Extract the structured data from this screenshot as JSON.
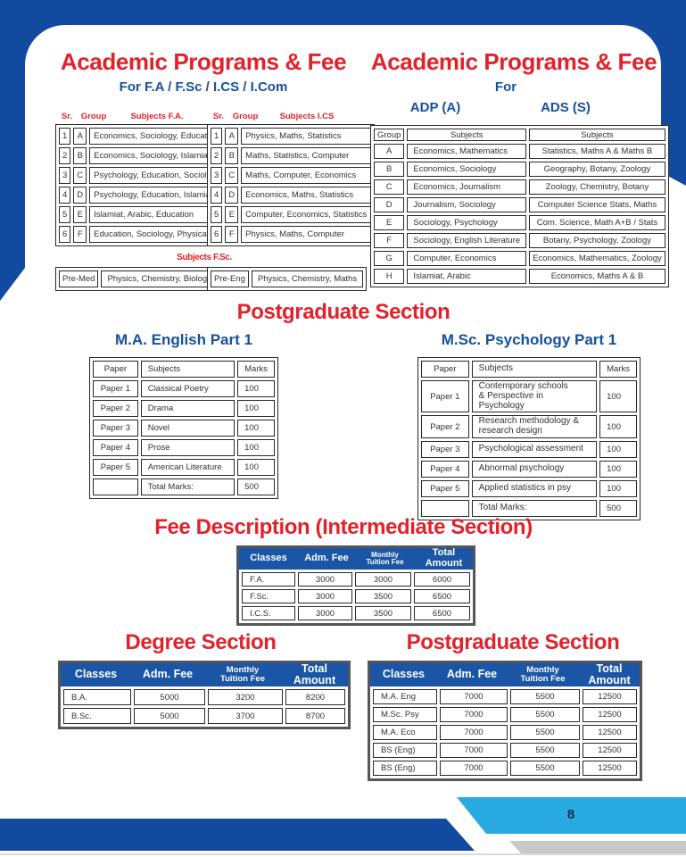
{
  "colors": {
    "frame_blue": "#114A9E",
    "heading_red": "#E2222B",
    "heading_blue": "#15509E",
    "cyan": "#29ABE2",
    "gray_band": "#C7C8CA",
    "header_bar": "#1B55A5"
  },
  "page": {
    "number": "8"
  },
  "left_section": {
    "title": "Academic Programs & Fee",
    "subtitle": "For F.A / F.Sc / I.CS / I.Com",
    "fa_labels": [
      "Sr.",
      "Group",
      "Subjects  F.A."
    ],
    "fa_rows": [
      [
        "1",
        "A",
        "Economics, Sociology, Education"
      ],
      [
        "2",
        "B",
        "Economics, Sociology, Islamiat"
      ],
      [
        "3",
        "C",
        "Psychology, Education, Sociology"
      ],
      [
        "4",
        "D",
        "Psychology, Education, Islamiat"
      ],
      [
        "5",
        "E",
        "Islamiat, Arabic, Education"
      ],
      [
        "6",
        "F",
        "Education, Sociology, Physical-Edu"
      ]
    ],
    "ics_labels": [
      "Sr.",
      "Group",
      "Subjects I.CS"
    ],
    "ics_rows": [
      [
        "1",
        "A",
        "Physics, Maths, Statistics"
      ],
      [
        "2",
        "B",
        "Maths, Statistics, Computer"
      ],
      [
        "3",
        "C",
        "Maths, Computer, Economics"
      ],
      [
        "4",
        "D",
        "Economics, Maths, Statistics"
      ],
      [
        "5",
        "E",
        "Computer, Economics, Statistics"
      ],
      [
        "6",
        "F",
        "Physics, Maths, Computer"
      ]
    ],
    "fsc_label": "Subjects F.Sc.",
    "fsc_left": [
      [
        "Pre-Med",
        "Physics, Chemistry, Biology"
      ]
    ],
    "fsc_right": [
      [
        "Pre-Eng",
        "Physics, Chemistry, Maths"
      ]
    ]
  },
  "right_section": {
    "title": "Academic Programs & Fee",
    "subtitle": "For",
    "adp_label": "ADP (A)",
    "ads_label": "ADS (S)",
    "headers": [
      "Group",
      "Subjects",
      "Subjects"
    ],
    "rows": [
      [
        "A",
        "Economics, Mathematics",
        "Statistics, Maths A & Maths B"
      ],
      [
        "B",
        "Economics, Sociology",
        "Geography, Botany, Zoology"
      ],
      [
        "C",
        "Economics, Journalism",
        "Zoology, Chemistry, Botany"
      ],
      [
        "D",
        "Journalism, Sociology",
        "Computer Science Stats, Maths"
      ],
      [
        "E",
        "Sociology, Psychology",
        "Com. Science, Math A+B / Stats"
      ],
      [
        "F",
        "Sociology, English Literature",
        "Botany, Psychology, Zoology"
      ],
      [
        "G",
        "Computer, Economics",
        "Economics, Mathematics, Zoology"
      ],
      [
        "H",
        "Islamiat, Arabic",
        "Economics, Maths A & B"
      ]
    ]
  },
  "postgraduate": {
    "title": "Postgraduate Section",
    "ma_english": {
      "title": "M.A. English Part 1",
      "headers": [
        "Paper",
        "Subjects",
        "Marks"
      ],
      "rows": [
        [
          "Paper 1",
          "Classical Poetry",
          "100"
        ],
        [
          "Paper 2",
          "Drama",
          "100"
        ],
        [
          "Paper 3",
          "Novel",
          "100"
        ],
        [
          "Paper 4",
          "Prose",
          "100"
        ],
        [
          "Paper 5",
          "American Literature",
          "100"
        ],
        [
          "",
          "Total Marks:",
          "500"
        ]
      ]
    },
    "msc_psychology": {
      "title": "M.Sc. Psychology Part 1",
      "headers": [
        "Paper",
        "Subjects",
        "Marks"
      ],
      "rows": [
        [
          "Paper 1",
          "Contemporary schools\n& Perspective in Psychology",
          "100"
        ],
        [
          "Paper 2",
          "Research methodology &\nresearch design",
          "100"
        ],
        [
          "Paper 3",
          "Psychological assessment",
          "100"
        ],
        [
          "Paper 4",
          "Abnormal psychology",
          "100"
        ],
        [
          "Paper 5",
          "Applied statistics in psy",
          "100"
        ],
        [
          "",
          "Total Marks:",
          "500"
        ]
      ]
    }
  },
  "fee_intermediate": {
    "title": "Fee Description (Intermediate Section)",
    "headers": [
      "Classes",
      "Adm. Fee",
      "Monthly\nTuition Fee",
      "Total Amount"
    ],
    "rows": [
      [
        "F.A.",
        "3000",
        "3000",
        "6000"
      ],
      [
        "F.Sc.",
        "3000",
        "3500",
        "6500"
      ],
      [
        "I.C.S.",
        "3000",
        "3500",
        "6500"
      ]
    ]
  },
  "degree": {
    "title": "Degree Section",
    "headers": [
      "Classes",
      "Adm. Fee",
      "Monthly\nTuition Fee",
      "Total Amount"
    ],
    "rows": [
      [
        "B.A.",
        "5000",
        "3200",
        "8200"
      ],
      [
        "B.Sc.",
        "5000",
        "3700",
        "8700"
      ]
    ]
  },
  "postgrad_fee": {
    "title": "Postgraduate Section",
    "headers": [
      "Classes",
      "Adm. Fee",
      "Monthly\nTuition Fee",
      "Total Amount"
    ],
    "rows": [
      [
        "M.A. Eng",
        "7000",
        "5500",
        "12500"
      ],
      [
        "M.Sc. Psy",
        "7000",
        "5500",
        "12500"
      ],
      [
        "M.A. Eco",
        "7000",
        "5500",
        "12500"
      ],
      [
        "BS (Eng)",
        "7000",
        "5500",
        "12500"
      ],
      [
        "BS (Eng)",
        "7000",
        "5500",
        "12500"
      ]
    ]
  }
}
